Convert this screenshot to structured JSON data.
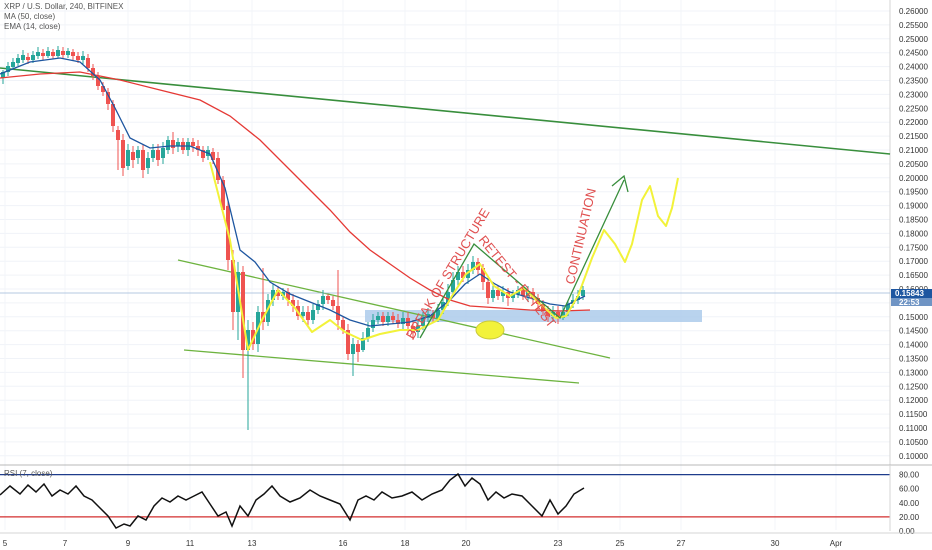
{
  "chart_data": {
    "type": "candlestick",
    "symbol_header": "XRP / U.S. Dollar, 240, BITFINEX",
    "indicators": [
      "MA (50, close)",
      "EMA (14, close)"
    ],
    "rsi_label": "RSI (7, close)",
    "price_axis": {
      "range": [
        0.095,
        0.2625
      ],
      "ticks": [
        "0.26000",
        "0.25500",
        "0.25000",
        "0.24500",
        "0.24000",
        "0.23500",
        "0.23000",
        "0.22500",
        "0.22000",
        "0.21500",
        "0.21000",
        "0.20500",
        "0.20000",
        "0.19500",
        "0.19000",
        "0.18500",
        "0.18000",
        "0.17500",
        "0.17000",
        "0.16500",
        "0.16000",
        "0.15500",
        "0.15000",
        "0.14500",
        "0.14000",
        "0.13500",
        "0.13000",
        "0.12500",
        "0.12000",
        "0.11500",
        "0.11000",
        "0.10500",
        "0.10000"
      ]
    },
    "current_price": "0.15843",
    "time_to_close": "22:53",
    "rsi_axis": {
      "range": [
        0,
        88
      ],
      "ticks": [
        "80.00",
        "60.00",
        "40.00",
        "20.00",
        "0.00"
      ],
      "upper_level": 80,
      "lower_level": 20
    },
    "x_ticks": [
      "5",
      "7",
      "9",
      "11",
      "13",
      "16",
      "18",
      "20",
      "23",
      "25",
      "27",
      "30",
      "Apr"
    ],
    "annotations": [
      "BREAK OF STRUCTURE",
      "RETEST - RETEST",
      "CONTINUATION"
    ],
    "colors": {
      "bull": "#26a69a",
      "bear": "#ef5350",
      "ma50": "#e53935",
      "ema14": "#1e56a0",
      "trendline": "#388e3c",
      "channel": "#6db33f",
      "projection": "#f2f23a",
      "zone": "#a7c8ea",
      "annotation": "#e05050",
      "rsi": "#111111"
    }
  }
}
